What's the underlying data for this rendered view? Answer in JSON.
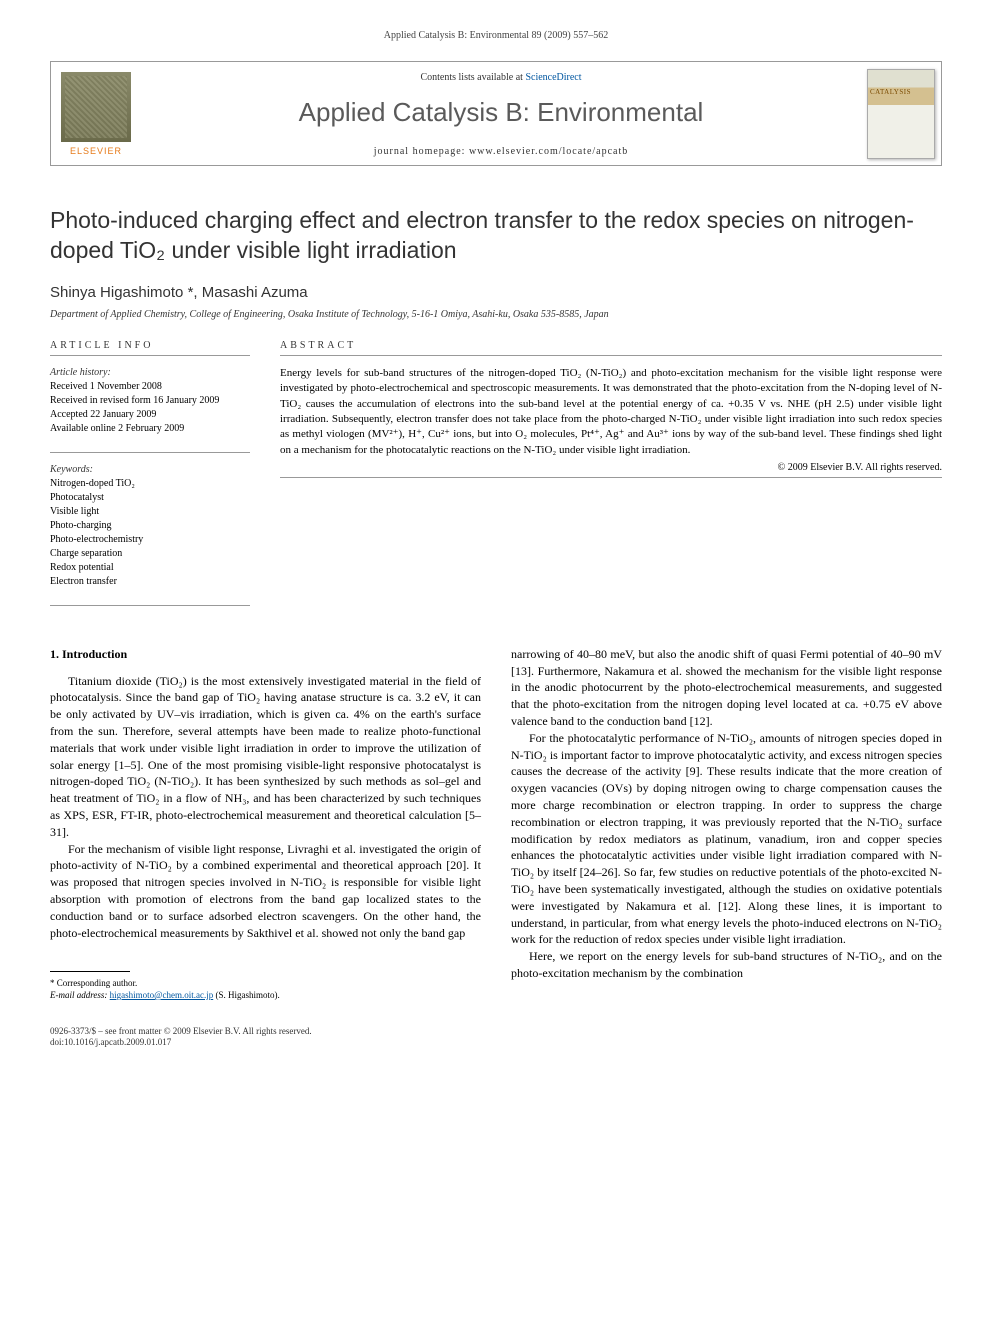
{
  "running_head": "Applied Catalysis B: Environmental 89 (2009) 557–562",
  "header": {
    "publisher": "ELSEVIER",
    "contents_prefix": "Contents lists available at ",
    "contents_link": "ScienceDirect",
    "journal": "Applied Catalysis B: Environmental",
    "homepage_prefix": "journal homepage: ",
    "homepage": "www.elsevier.com/locate/apcatb",
    "cover_small": "CATALYSIS"
  },
  "title": "Photo-induced charging effect and electron transfer to the redox species on nitrogen-doped TiO₂ under visible light irradiation",
  "authors": "Shinya Higashimoto *, Masashi Azuma",
  "affiliation": "Department of Applied Chemistry, College of Engineering, Osaka Institute of Technology, 5-16-1 Omiya, Asahi-ku, Osaka 535-8585, Japan",
  "info": {
    "heading": "ARTICLE INFO",
    "history_label": "Article history:",
    "history": [
      "Received 1 November 2008",
      "Received in revised form 16 January 2009",
      "Accepted 22 January 2009",
      "Available online 2 February 2009"
    ],
    "keywords_label": "Keywords:",
    "keywords": [
      "Nitrogen-doped TiO₂",
      "Photocatalyst",
      "Visible light",
      "Photo-charging",
      "Photo-electrochemistry",
      "Charge separation",
      "Redox potential",
      "Electron transfer"
    ]
  },
  "abstract": {
    "heading": "ABSTRACT",
    "text": "Energy levels for sub-band structures of the nitrogen-doped TiO₂ (N-TiO₂) and photo-excitation mechanism for the visible light response were investigated by photo-electrochemical and spectroscopic measurements. It was demonstrated that the photo-excitation from the N-doping level of N-TiO₂ causes the accumulation of electrons into the sub-band level at the potential energy of ca. +0.35 V vs. NHE (pH 2.5) under visible light irradiation. Subsequently, electron transfer does not take place from the photo-charged N-TiO₂ under visible light irradiation into such redox species as methyl viologen (MV²⁺), H⁺, Cu²⁺ ions, but into O₂ molecules, Pt⁴⁺, Ag⁺ and Au³⁺ ions by way of the sub-band level. These findings shed light on a mechanism for the photocatalytic reactions on the N-TiO₂ under visible light irradiation.",
    "copyright": "© 2009 Elsevier B.V. All rights reserved."
  },
  "body": {
    "section_head": "1. Introduction",
    "left_paragraphs": [
      "Titanium dioxide (TiO₂) is the most extensively investigated material in the field of photocatalysis. Since the band gap of TiO₂ having anatase structure is ca. 3.2 eV, it can be only activated by UV–vis irradiation, which is given ca. 4% on the earth's surface from the sun. Therefore, several attempts have been made to realize photo-functional materials that work under visible light irradiation in order to improve the utilization of solar energy [1–5]. One of the most promising visible-light responsive photocatalyst is nitrogen-doped TiO₂ (N-TiO₂). It has been synthesized by such methods as sol–gel and heat treatment of TiO₂ in a flow of NH₃, and has been characterized by such techniques as XPS, ESR, FT-IR, photo-electrochemical measurement and theoretical calculation [5–31].",
      "For the mechanism of visible light response, Livraghi et al. investigated the origin of photo-activity of N-TiO₂ by a combined experimental and theoretical approach [20]. It was proposed that nitrogen species involved in N-TiO₂ is responsible for visible light absorption with promotion of electrons from the band gap localized states to the conduction band or to surface adsorbed electron scavengers. On the other hand, the photo-electrochemical measurements by Sakthivel et al. showed not only the band gap"
    ],
    "right_paragraphs": [
      "narrowing of 40–80 meV, but also the anodic shift of quasi Fermi potential of 40–90 mV [13]. Furthermore, Nakamura et al. showed the mechanism for the visible light response in the anodic photocurrent by the photo-electrochemical measurements, and suggested that the photo-excitation from the nitrogen doping level located at ca. +0.75 eV above valence band to the conduction band [12].",
      "For the photocatalytic performance of N-TiO₂, amounts of nitrogen species doped in N-TiO₂ is important factor to improve photocatalytic activity, and excess nitrogen species causes the decrease of the activity [9]. These results indicate that the more creation of oxygen vacancies (OVs) by doping nitrogen owing to charge compensation causes the more charge recombination or electron trapping. In order to suppress the charge recombination or electron trapping, it was previously reported that the N-TiO₂ surface modification by redox mediators as platinum, vanadium, iron and copper species enhances the photocatalytic activities under visible light irradiation compared with N-TiO₂ by itself [24–26]. So far, few studies on reductive potentials of the photo-excited N-TiO₂ have been systematically investigated, although the studies on oxidative potentials were investigated by Nakamura et al. [12]. Along these lines, it is important to understand, in particular, from what energy levels the photo-induced electrons on N-TiO₂ work for the reduction of redox species under visible light irradiation.",
      "Here, we report on the energy levels for sub-band structures of N-TiO₂, and on the photo-excitation mechanism by the combination"
    ]
  },
  "footnote": {
    "corr": "* Corresponding author.",
    "email_label": "E-mail address: ",
    "email": "higashimoto@chem.oit.ac.jp",
    "email_suffix": " (S. Higashimoto)."
  },
  "footer": {
    "line1": "0926-3373/$ – see front matter © 2009 Elsevier B.V. All rights reserved.",
    "line2": "doi:10.1016/j.apcatb.2009.01.017"
  },
  "colors": {
    "link": "#0056a0",
    "elsevier_orange": "#e67a1a",
    "text": "#000000",
    "rule": "#999999"
  }
}
